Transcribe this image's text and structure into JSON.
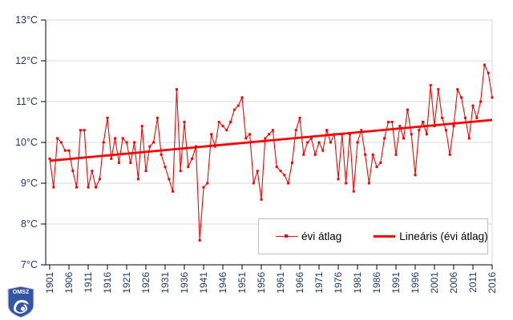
{
  "chart_data": {
    "type": "line",
    "title": "",
    "xlabel": "",
    "ylabel": "",
    "ylim": [
      7,
      13
    ],
    "y_tick_values": [
      7,
      8,
      9,
      10,
      11,
      12,
      13
    ],
    "y_tick_labels": [
      "7°C",
      "8°C",
      "9°C",
      "10°C",
      "11°C",
      "12°C",
      "13°C"
    ],
    "x_tick_labels": [
      "1901",
      "1906",
      "1911",
      "1916",
      "1921",
      "1926",
      "1931",
      "1936",
      "1941",
      "1946",
      "1951",
      "1956",
      "1961",
      "1966",
      "1971",
      "1976",
      "1981",
      "1986",
      "1991",
      "1996",
      "2001",
      "2006",
      "2011",
      "2016"
    ],
    "grid": true,
    "legend_position": "inside-bottom-right",
    "categories_note": "annual values 1901-2016",
    "series": [
      {
        "name": "évi átlag",
        "kind": "line_with_square_markers",
        "color": "#ff0000",
        "start_year": 1901,
        "end_year": 2016,
        "values": [
          9.6,
          8.9,
          10.1,
          10.0,
          9.8,
          9.8,
          9.3,
          8.9,
          10.3,
          10.3,
          8.9,
          9.3,
          8.9,
          9.1,
          10.0,
          10.6,
          9.6,
          10.1,
          9.5,
          10.1,
          10.0,
          9.5,
          10.0,
          9.1,
          10.4,
          9.3,
          9.9,
          10.0,
          10.6,
          9.7,
          9.4,
          9.1,
          8.8,
          11.3,
          9.3,
          10.5,
          9.4,
          9.6,
          9.9,
          7.6,
          8.9,
          9.0,
          10.2,
          9.9,
          10.5,
          10.4,
          10.3,
          10.5,
          10.8,
          10.9,
          11.1,
          10.1,
          10.2,
          9.0,
          9.3,
          8.6,
          10.1,
          10.2,
          10.3,
          9.4,
          9.3,
          9.2,
          9.0,
          9.5,
          10.3,
          10.6,
          9.7,
          10.0,
          10.1,
          9.7,
          10.0,
          9.8,
          10.3,
          10.0,
          10.2,
          9.1,
          10.2,
          9.0,
          10.2,
          8.8,
          10.0,
          10.3,
          9.7,
          9.0,
          9.7,
          9.4,
          9.5,
          10.1,
          10.5,
          10.5,
          9.7,
          10.4,
          10.1,
          10.8,
          10.2,
          9.2,
          10.3,
          10.5,
          10.2,
          11.4,
          10.4,
          11.3,
          10.6,
          10.3,
          9.7,
          10.4,
          11.3,
          11.1,
          10.6,
          10.1,
          10.9,
          10.6,
          11.0,
          11.9,
          11.7,
          11.1
        ]
      },
      {
        "name": "Lineáris (évi átlag)",
        "kind": "linear_trend",
        "color": "#ff0000",
        "endpoint_start": 9.55,
        "endpoint_end": 10.55
      }
    ]
  },
  "legend": {
    "series_label": "évi átlag",
    "trend_label": "Lineáris (évi átlag)"
  },
  "logo": {
    "text": "OMSZ"
  },
  "colors": {
    "series": "#ff0000",
    "trend": "#ff0000",
    "grid": "#d9d9d9",
    "axis": "#000000",
    "tick_label": "#1f3864",
    "legend_border": "#bfbfbf",
    "background": "#ffffff",
    "logo_blue": "#3355a4",
    "logo_light_blue": "#7fb2e5"
  }
}
